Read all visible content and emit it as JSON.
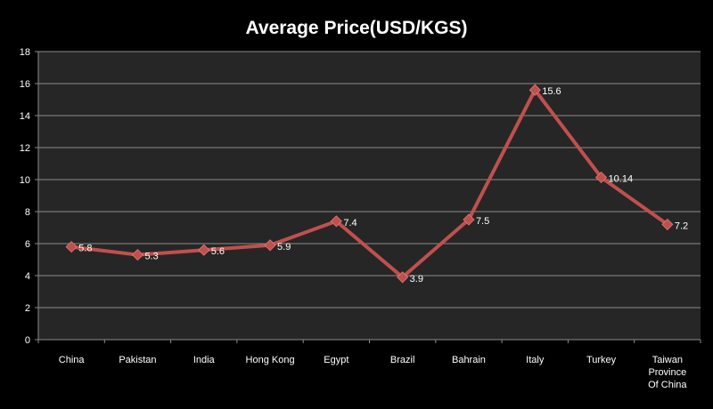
{
  "chart_data": {
    "type": "line",
    "title": "Average Price(USD/KGS)",
    "xlabel": "",
    "ylabel": "",
    "categories": [
      "China",
      "Pakistan",
      "India",
      "Hong Kong",
      "Egypt",
      "Brazil",
      "Bahrain",
      "Italy",
      "Turkey",
      "Taiwan Province Of China"
    ],
    "values": [
      5.8,
      5.3,
      5.6,
      5.9,
      7.4,
      3.9,
      7.5,
      15.6,
      10.14,
      7.2
    ],
    "value_labels": [
      "5.8",
      "5.3",
      "5.6",
      "5.9",
      "7.4",
      "3.9",
      "7.5",
      "15.6",
      "10.14",
      "7.2"
    ],
    "ylim": [
      0,
      18
    ],
    "yticks": [
      0,
      2,
      4,
      6,
      8,
      10,
      12,
      14,
      16,
      18
    ],
    "grid": true,
    "legend": false,
    "colors": {
      "background": "#000000",
      "plot_background": "#262626",
      "gridline": "#8c8c8c",
      "axis": "#8c8c8c",
      "line": "#c0504d",
      "marker": "#c0504d",
      "text": "#ffffff"
    }
  }
}
